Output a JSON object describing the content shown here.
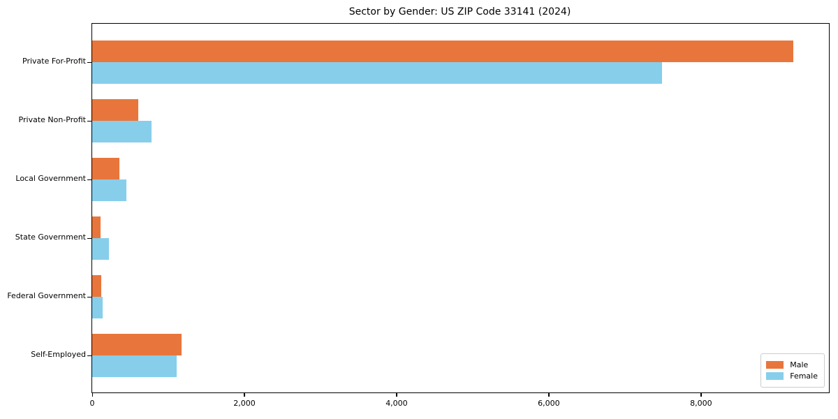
{
  "figure": {
    "background": "#ffffff"
  },
  "chart_data": {
    "type": "bar",
    "orientation": "horizontal",
    "title": "Sector by Gender: US ZIP Code 33141 (2024)",
    "categories": [
      "Private For-Profit",
      "Private Non-Profit",
      "Local Government",
      "State Government",
      "Federal Government",
      "Self-Employed"
    ],
    "series": [
      {
        "name": "Male",
        "color": "#e8763c",
        "values": [
          9210,
          610,
          360,
          110,
          120,
          1170
        ]
      },
      {
        "name": "Female",
        "color": "#87ceeb",
        "values": [
          7490,
          780,
          450,
          220,
          140,
          1110
        ]
      }
    ],
    "xlabel": "",
    "ylabel": "",
    "xlim": [
      0,
      9680
    ],
    "xticks": {
      "values": [
        0,
        2000,
        4000,
        6000,
        8000
      ],
      "labels": [
        "0",
        "2,000",
        "4,000",
        "6,000",
        "8,000"
      ]
    },
    "legend": {
      "position": "lower-right",
      "entries": [
        "Male",
        "Female"
      ]
    },
    "grid": false,
    "axis_color": "#000000"
  }
}
